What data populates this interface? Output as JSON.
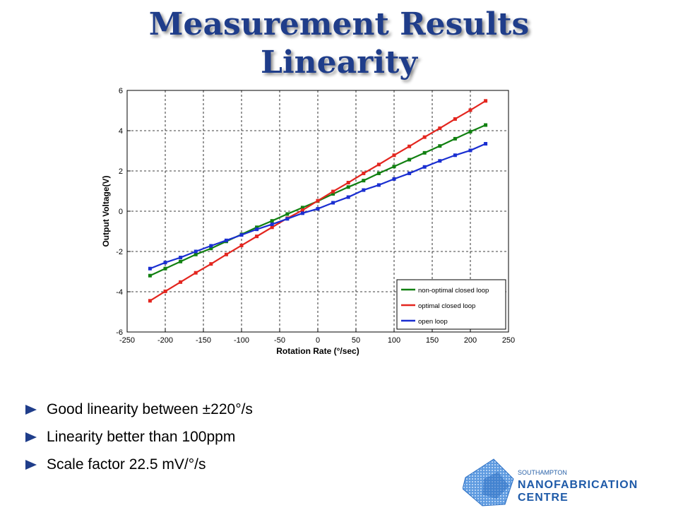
{
  "slide": {
    "title_line1": "Measurement Results",
    "title_line2": "Linearity",
    "accent_color": "#1f3d8a"
  },
  "bullets": [
    "Good linearity between ±220°/s",
    "Linearity better than 100ppm",
    "Scale factor 22.5 mV/°/s"
  ],
  "logo": {
    "top_text": "SOUTHAMPTON",
    "bottom_text": "NANOFABRICATION CENTRE"
  },
  "chart_data": {
    "type": "line",
    "title": "",
    "xlabel": "Rotation Rate (°/sec)",
    "ylabel": "Output Voltage(V)",
    "xlim": [
      -250,
      250
    ],
    "ylim": [
      -6,
      6
    ],
    "xticks": [
      -250,
      -200,
      -150,
      -100,
      -50,
      0,
      50,
      100,
      150,
      200,
      250
    ],
    "yticks": [
      -6,
      -4,
      -2,
      0,
      2,
      4,
      6
    ],
    "grid": true,
    "legend_position": "bottom-right",
    "x": [
      -220,
      -200,
      -180,
      -160,
      -140,
      -120,
      -100,
      -80,
      -60,
      -40,
      -20,
      0,
      20,
      40,
      60,
      80,
      100,
      120,
      140,
      160,
      180,
      200,
      220
    ],
    "series": [
      {
        "name": "non-optimal closed loop",
        "color": "#118011",
        "values": [
          -3.2,
          -2.85,
          -2.5,
          -2.15,
          -1.85,
          -1.5,
          -1.15,
          -0.8,
          -0.48,
          -0.14,
          0.18,
          0.5,
          0.86,
          1.2,
          1.52,
          1.88,
          2.22,
          2.56,
          2.9,
          3.24,
          3.6,
          3.95,
          4.28
        ]
      },
      {
        "name": "optimal closed loop",
        "color": "#e3261f",
        "values": [
          -4.45,
          -3.98,
          -3.52,
          -3.06,
          -2.62,
          -2.15,
          -1.7,
          -1.25,
          -0.8,
          -0.35,
          0.05,
          0.52,
          0.98,
          1.42,
          1.88,
          2.32,
          2.78,
          3.22,
          3.68,
          4.12,
          4.58,
          5.02,
          5.48
        ]
      },
      {
        "name": "open loop",
        "color": "#1a2fd1",
        "values": [
          -2.85,
          -2.55,
          -2.3,
          -2.0,
          -1.72,
          -1.45,
          -1.18,
          -0.9,
          -0.65,
          -0.38,
          -0.1,
          0.12,
          0.42,
          0.7,
          1.05,
          1.3,
          1.6,
          1.88,
          2.2,
          2.5,
          2.78,
          3.02,
          3.35
        ]
      }
    ]
  }
}
